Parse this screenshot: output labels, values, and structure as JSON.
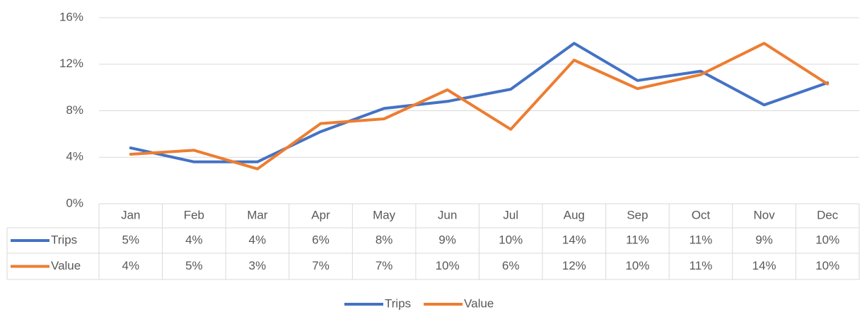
{
  "chart_data": {
    "type": "line",
    "categories": [
      "Jan",
      "Feb",
      "Mar",
      "Apr",
      "May",
      "Jun",
      "Jul",
      "Aug",
      "Sep",
      "Oct",
      "Nov",
      "Dec"
    ],
    "series": [
      {
        "name": "Trips",
        "color": "#4472c4",
        "values": [
          4.8,
          3.6,
          3.6,
          6.2,
          8.2,
          8.8,
          9.85,
          13.8,
          10.6,
          11.4,
          8.5,
          10.4
        ],
        "value_labels": [
          "5%",
          "4%",
          "4%",
          "6%",
          "8%",
          "9%",
          "10%",
          "14%",
          "11%",
          "11%",
          "9%",
          "10%"
        ]
      },
      {
        "name": "Value",
        "color": "#ed7d31",
        "values": [
          4.26,
          4.6,
          3.0,
          6.9,
          7.3,
          9.8,
          6.4,
          12.35,
          9.9,
          11.1,
          13.8,
          10.3
        ],
        "value_labels": [
          "4%",
          "5%",
          "3%",
          "7%",
          "7%",
          "10%",
          "6%",
          "12%",
          "10%",
          "11%",
          "14%",
          "10%"
        ]
      }
    ],
    "ylim": [
      0,
      16
    ],
    "yticks": [
      {
        "value": 0,
        "label": "0%"
      },
      {
        "value": 4,
        "label": "4%"
      },
      {
        "value": 8,
        "label": "8%"
      },
      {
        "value": 12,
        "label": "12%"
      },
      {
        "value": 16,
        "label": "16%"
      }
    ],
    "grid": true,
    "legend": "bottom"
  }
}
